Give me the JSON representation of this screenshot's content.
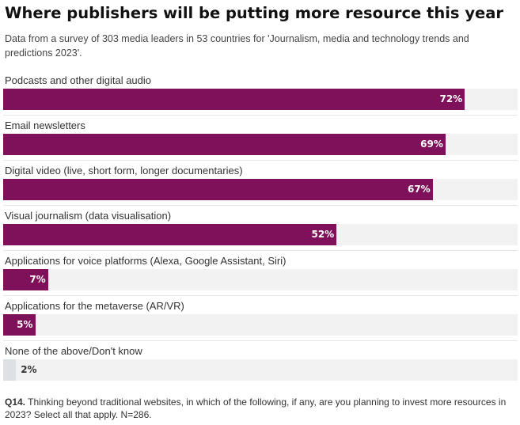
{
  "colors": {
    "bar": "#7e1159",
    "bar_small": "#dde0e4",
    "track": "#f2f2f2",
    "value_on_bar": "#ffffff",
    "value_off_bar": "#333333"
  },
  "footnote": {
    "label": "Q14.",
    "text": "Thinking beyond traditional websites, in which of the following, if any, are you planning to invest more resources in 2023? Select all that apply. N=286."
  },
  "chart_data": {
    "type": "bar",
    "orientation": "horizontal",
    "title": "Where publishers will be putting more resource this year",
    "subtitle": "Data from a survey of 303 media leaders in 53 countries for 'Journalism, media and technology trends and predictions 2023'.",
    "xlim": [
      0,
      100
    ],
    "unit": "%",
    "grid": false,
    "categories": [
      "Podcasts and other digital audio",
      "Email newsletters",
      "Digital video (live, short form, longer documentaries)",
      "Visual journalism (data visualisation)",
      "Applications for voice platforms (Alexa, Google Assistant, Siri)",
      "Applications for the metaverse (AR/VR)",
      "None of the above/Don't know"
    ],
    "values": [
      72,
      69,
      67,
      52,
      7,
      5,
      2
    ],
    "value_labels": [
      "72%",
      "69%",
      "67%",
      "52%",
      "7%",
      "5%",
      "2%"
    ]
  }
}
